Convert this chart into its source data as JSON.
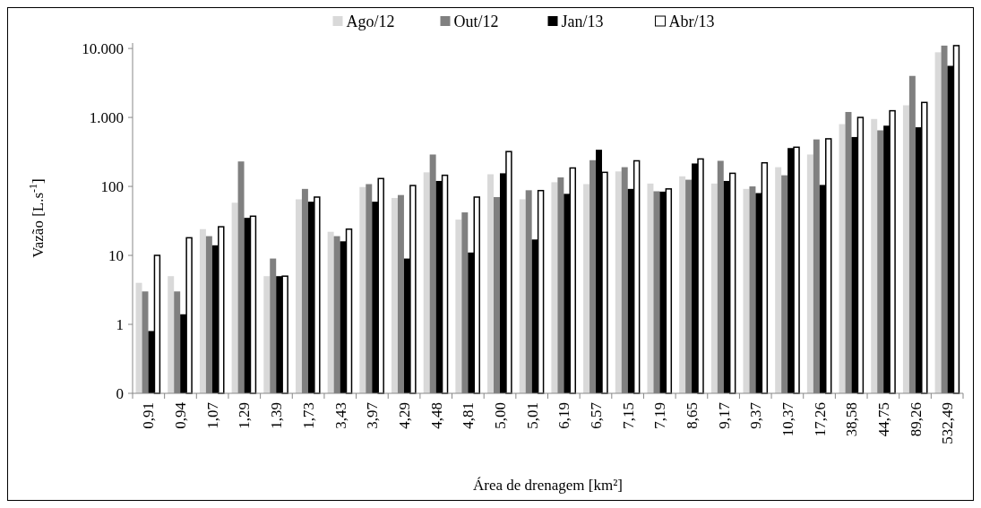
{
  "chart_data": {
    "type": "bar",
    "xlabel": "Área de drenagem [km²]",
    "ylabel": "Vazão [L.s$^{-1}$]",
    "categories": [
      "0,91",
      "0,94",
      "1,07",
      "1,29",
      "1,39",
      "1,73",
      "3,43",
      "3,97",
      "4,29",
      "4,48",
      "4,81",
      "5,00",
      "5,01",
      "6,19",
      "6,57",
      "7,15",
      "7,19",
      "8,65",
      "9,17",
      "9,37",
      "10,37",
      "17,26",
      "38,58",
      "44,75",
      "89,26",
      "532,49"
    ],
    "series": [
      {
        "name": "Ago/12",
        "color": "#d9d9d9",
        "values": [
          4,
          5,
          24,
          58,
          5,
          65,
          22,
          98,
          68,
          160,
          33,
          150,
          65,
          115,
          108,
          165,
          110,
          140,
          110,
          92,
          190,
          290,
          800,
          950,
          1500,
          8800
        ]
      },
      {
        "name": "Out/12",
        "color": "#808080",
        "values": [
          3,
          3,
          19,
          230,
          9,
          92,
          19,
          108,
          75,
          290,
          42,
          70,
          88,
          135,
          240,
          190,
          85,
          125,
          235,
          100,
          145,
          480,
          1200,
          650,
          4000,
          11000
        ]
      },
      {
        "name": "Jan/13",
        "color": "#000000",
        "values": [
          0.8,
          1.4,
          14,
          35,
          5,
          60,
          16,
          60,
          9,
          120,
          11,
          155,
          17,
          78,
          340,
          92,
          84,
          215,
          120,
          80,
          360,
          105,
          520,
          760,
          720,
          5600
        ]
      },
      {
        "name": "Abr/13",
        "color": "#ffffff",
        "values": [
          10,
          18,
          26,
          37,
          5,
          70,
          24,
          130,
          103,
          145,
          70,
          320,
          87,
          185,
          160,
          235,
          92,
          250,
          155,
          220,
          370,
          490,
          1000,
          1250,
          1650,
          11000
        ]
      }
    ],
    "log": true,
    "ylim": [
      0.1,
      12000
    ],
    "yticks": [
      {
        "value": 0.1,
        "label": "0"
      },
      1,
      10,
      100,
      {
        "value": 1000,
        "label": "1.000"
      },
      {
        "value": 10000,
        "label": "10.000"
      }
    ],
    "legend": "top",
    "grid": false
  }
}
